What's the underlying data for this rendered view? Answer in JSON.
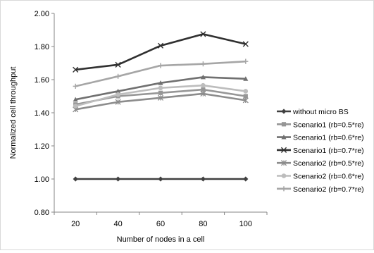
{
  "chart_data": {
    "type": "line",
    "title": "",
    "xlabel": "Number of nodes in a cell",
    "ylabel": "Normalized cell throughput",
    "categories": [
      "20",
      "40",
      "60",
      "80",
      "100"
    ],
    "ylim": [
      0.8,
      2.0
    ],
    "yticks": [
      "0.80",
      "1.00",
      "1.20",
      "1.40",
      "1.60",
      "1.80",
      "2.00"
    ],
    "grid": false,
    "legend_position": "right",
    "series": [
      {
        "name": "without micro BS",
        "values": [
          1.0,
          1.0,
          1.0,
          1.0,
          1.0
        ],
        "color": "#404040",
        "marker": "diamond"
      },
      {
        "name": "Scenario1 (rb=0.5*re)",
        "values": [
          1.45,
          1.5,
          1.52,
          1.54,
          1.5
        ],
        "color": "#969696",
        "marker": "square"
      },
      {
        "name": "Scenario1 (rb=0.6*re)",
        "values": [
          1.48,
          1.53,
          1.58,
          1.615,
          1.605
        ],
        "color": "#707070",
        "marker": "triangle"
      },
      {
        "name": "Scenario1 (rb=0.7*re)",
        "values": [
          1.66,
          1.69,
          1.805,
          1.875,
          1.815
        ],
        "color": "#303030",
        "marker": "x"
      },
      {
        "name": "Scenario2 (rb=0.5*re)",
        "values": [
          1.42,
          1.465,
          1.49,
          1.515,
          1.475
        ],
        "color": "#8c8c8c",
        "marker": "star"
      },
      {
        "name": "Scenario2 (rb=0.6*re)",
        "values": [
          1.44,
          1.51,
          1.55,
          1.565,
          1.53
        ],
        "color": "#bdbdbd",
        "marker": "circle"
      },
      {
        "name": "Scenario2 (rb=0.7*re)",
        "values": [
          1.56,
          1.62,
          1.685,
          1.695,
          1.71
        ],
        "color": "#a6a6a6",
        "marker": "plus"
      }
    ]
  }
}
